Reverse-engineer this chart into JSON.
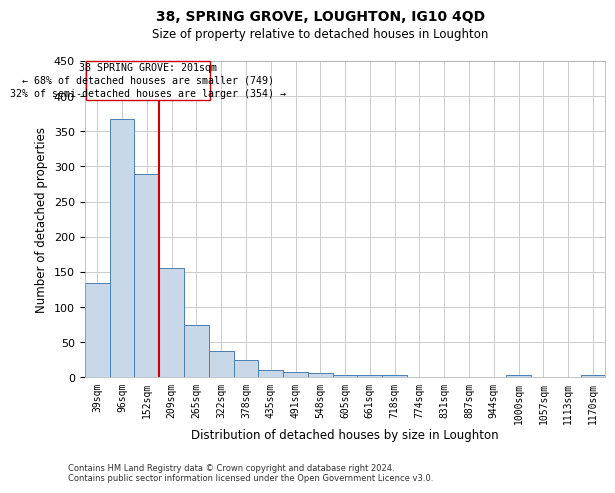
{
  "title": "38, SPRING GROVE, LOUGHTON, IG10 4QD",
  "subtitle": "Size of property relative to detached houses in Loughton",
  "xlabel": "Distribution of detached houses by size in Loughton",
  "ylabel": "Number of detached properties",
  "categories": [
    "39sqm",
    "96sqm",
    "152sqm",
    "209sqm",
    "265sqm",
    "322sqm",
    "378sqm",
    "435sqm",
    "491sqm",
    "548sqm",
    "605sqm",
    "661sqm",
    "718sqm",
    "774sqm",
    "831sqm",
    "887sqm",
    "944sqm",
    "1000sqm",
    "1057sqm",
    "1113sqm",
    "1170sqm"
  ],
  "values": [
    135,
    368,
    290,
    155,
    75,
    37,
    25,
    10,
    8,
    6,
    4,
    4,
    4,
    0,
    0,
    0,
    0,
    3,
    0,
    0,
    3
  ],
  "bar_color": "#c8d8e8",
  "bar_edge_color": "#4a7fb5",
  "grid_color": "#cccccc",
  "annotation_line1": "38 SPRING GROVE: 201sqm",
  "annotation_line2": "← 68% of detached houses are smaller (749)",
  "annotation_line3": "32% of semi-detached houses are larger (354) →",
  "vline_x": 2.5,
  "vline_color": "#cc0000",
  "ylim": [
    0,
    450
  ],
  "yticks": [
    0,
    50,
    100,
    150,
    200,
    250,
    300,
    350,
    400,
    450
  ],
  "footer1": "Contains HM Land Registry data © Crown copyright and database right 2024.",
  "footer2": "Contains public sector information licensed under the Open Government Licence v3.0.",
  "background_color": "#ffffff",
  "fig_width": 6.0,
  "fig_height": 5.0
}
